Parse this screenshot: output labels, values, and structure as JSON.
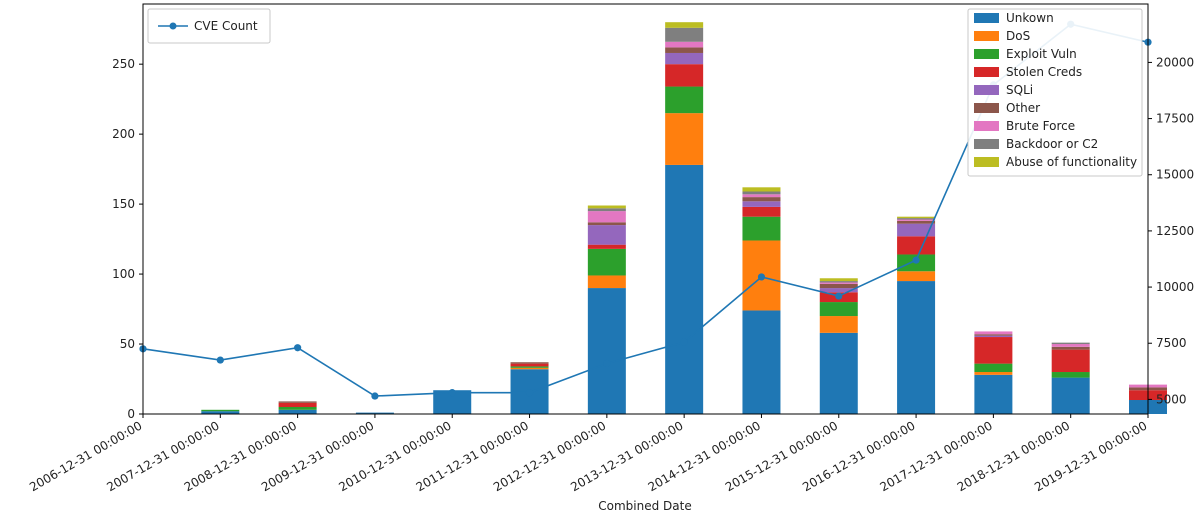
{
  "chart_data": {
    "type": "bar",
    "title": "",
    "xlabel": "Combined Date",
    "ylabel": "",
    "categories": [
      "2006-12-31 00:00:00",
      "2007-12-31 00:00:00",
      "2008-12-31 00:00:00",
      "2009-12-31 00:00:00",
      "2010-12-31 00:00:00",
      "2011-12-31 00:00:00",
      "2012-12-31 00:00:00",
      "2013-12-31 00:00:00",
      "2014-12-31 00:00:00",
      "2015-12-31 00:00:00",
      "2016-12-31 00:00:00",
      "2017-12-31 00:00:00",
      "2018-12-31 00:00:00",
      "2019-12-31 00:00:00"
    ],
    "ylim": [
      0,
      293
    ],
    "yticks": [
      0,
      50,
      100,
      150,
      200,
      250
    ],
    "series": [
      {
        "name": "Unkown",
        "color": "#1f77b4",
        "values": [
          0,
          2,
          3,
          1,
          17,
          32,
          90,
          178,
          74,
          58,
          95,
          28,
          26,
          10
        ]
      },
      {
        "name": "DoS",
        "color": "#ff7f0e",
        "values": [
          0,
          0,
          0,
          0,
          0,
          1,
          9,
          37,
          50,
          12,
          7,
          2,
          0,
          0
        ]
      },
      {
        "name": "Exploit Vuln",
        "color": "#2ca02c",
        "values": [
          0,
          1,
          2,
          0,
          0,
          1,
          19,
          19,
          17,
          10,
          12,
          6,
          4,
          0
        ]
      },
      {
        "name": "Stolen Creds",
        "color": "#d62728",
        "values": [
          0,
          0,
          3,
          0,
          0,
          2,
          3,
          16,
          7,
          7,
          13,
          19,
          16,
          7
        ]
      },
      {
        "name": "SQLi",
        "color": "#9467bd",
        "values": [
          0,
          0,
          0,
          0,
          0,
          0,
          14,
          8,
          4,
          3,
          9,
          1,
          0,
          0
        ]
      },
      {
        "name": "Other",
        "color": "#8c564b",
        "values": [
          0,
          0,
          1,
          0,
          0,
          1,
          2,
          4,
          3,
          3,
          2,
          1,
          2,
          2
        ]
      },
      {
        "name": "Brute Force",
        "color": "#e377c2",
        "values": [
          0,
          0,
          0,
          0,
          0,
          0,
          8,
          4,
          2,
          1,
          1,
          2,
          2,
          2
        ]
      },
      {
        "name": "Backdoor or C2",
        "color": "#7f7f7f",
        "values": [
          0,
          0,
          0,
          0,
          0,
          0,
          2,
          10,
          2,
          1,
          1,
          0,
          1,
          0
        ]
      },
      {
        "name": "Abuse of functionality",
        "color": "#bcbd22",
        "values": [
          0,
          0,
          0,
          0,
          0,
          0,
          2,
          4,
          3,
          2,
          1,
          0,
          0,
          0
        ]
      }
    ],
    "secondary": {
      "name": "CVE Count",
      "type": "line",
      "color": "#1f77b4",
      "values": [
        7250,
        6750,
        7300,
        5150,
        5300,
        5300,
        6600,
        7550,
        10450,
        9600,
        11200,
        19000,
        21700,
        20900
      ],
      "ylim": [
        4350,
        22600
      ],
      "yticks": [
        5000,
        7500,
        10000,
        12500,
        15000,
        17500,
        20000
      ]
    },
    "legend_position": "top-right",
    "secondary_legend_position": "top-left",
    "grid": false
  }
}
